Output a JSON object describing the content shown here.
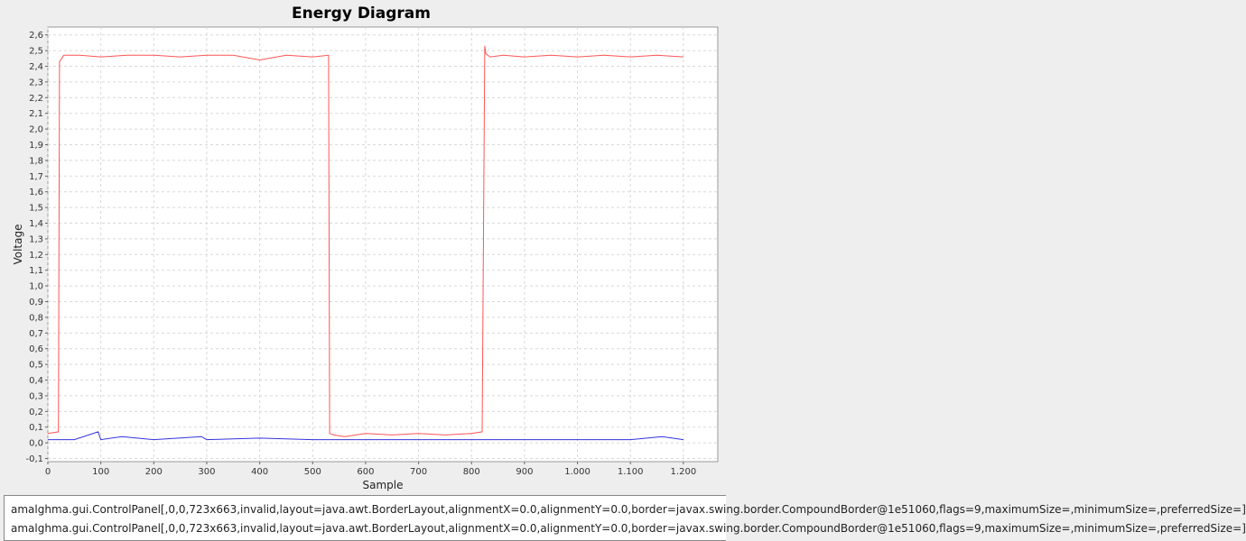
{
  "chart_data": {
    "type": "line",
    "title": "Energy Diagram",
    "xlabel": "Sample",
    "ylabel": "Voltage",
    "xlim": [
      0,
      1265
    ],
    "ylim": [
      -0.12,
      2.65
    ],
    "x_ticks": [
      0,
      100,
      200,
      300,
      400,
      500,
      600,
      700,
      800,
      900,
      1000,
      1100,
      1200
    ],
    "x_tick_labels": [
      "0",
      "100",
      "200",
      "300",
      "400",
      "500",
      "600",
      "700",
      "800",
      "900",
      "1.000",
      "1.100",
      "1.200"
    ],
    "y_ticks": [
      -0.1,
      0.0,
      0.1,
      0.2,
      0.3,
      0.4,
      0.5,
      0.6,
      0.7,
      0.8,
      0.9,
      1.0,
      1.1,
      1.2,
      1.3,
      1.4,
      1.5,
      1.6,
      1.7,
      1.8,
      1.9,
      2.0,
      2.1,
      2.2,
      2.3,
      2.4,
      2.5,
      2.6
    ],
    "y_tick_labels": [
      "-0,1",
      "0,0",
      "0,1",
      "0,2",
      "0,3",
      "0,4",
      "0,5",
      "0,6",
      "0,7",
      "0,8",
      "0,9",
      "1,0",
      "1,1",
      "1,2",
      "1,3",
      "1,4",
      "1,5",
      "1,6",
      "1,7",
      "1,8",
      "1,9",
      "2,0",
      "2,1",
      "2,2",
      "2,3",
      "2,4",
      "2,5",
      "2,6"
    ],
    "grid": true,
    "legend_position": "bottom",
    "series": [
      {
        "name": "amalghma.gui.ControlPanel[,0,0,723x663,invalid,layout=java.awt.BorderLayout,alignmentX=0.0,alignmentY=0.0,border=javax.swing.border.CompoundBorder@1e51060,flags=9,maximumSize=,minimumSize=,preferredSize=]",
        "color": "#ff5555",
        "x": [
          0,
          20,
          22,
          30,
          60,
          100,
          150,
          200,
          250,
          300,
          350,
          400,
          450,
          500,
          530,
          532,
          540,
          560,
          600,
          650,
          700,
          750,
          800,
          820,
          825,
          827,
          835,
          860,
          900,
          950,
          1000,
          1050,
          1100,
          1150,
          1200
        ],
        "y": [
          0.06,
          0.07,
          2.43,
          2.47,
          2.47,
          2.46,
          2.47,
          2.47,
          2.46,
          2.47,
          2.47,
          2.44,
          2.47,
          2.46,
          2.47,
          0.06,
          0.05,
          0.04,
          0.06,
          0.05,
          0.06,
          0.05,
          0.06,
          0.07,
          2.53,
          2.48,
          2.46,
          2.47,
          2.46,
          2.47,
          2.46,
          2.47,
          2.46,
          2.47,
          2.46
        ]
      },
      {
        "name": "amalghma.gui.ControlPanel[,0,0,723x663,invalid,layout=java.awt.BorderLayout,alignmentX=0.0,alignmentY=0.0,border=javax.swing.border.CompoundBorder@1e51060,flags=9,maximumSize=,minimumSize=,preferredSize=]",
        "color": "#3333dd",
        "x": [
          0,
          50,
          95,
          100,
          140,
          200,
          290,
          300,
          400,
          500,
          600,
          700,
          800,
          900,
          1000,
          1100,
          1160,
          1200
        ],
        "y": [
          0.02,
          0.02,
          0.07,
          0.02,
          0.04,
          0.02,
          0.04,
          0.02,
          0.03,
          0.02,
          0.02,
          0.02,
          0.02,
          0.02,
          0.02,
          0.02,
          0.04,
          0.02
        ]
      }
    ]
  }
}
